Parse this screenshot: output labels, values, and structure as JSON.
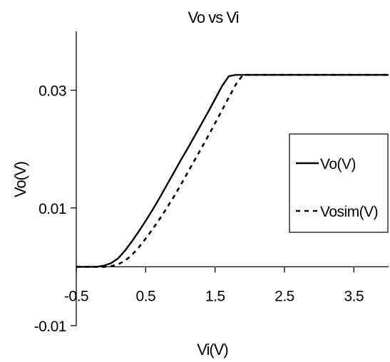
{
  "chart_data": {
    "type": "line",
    "title": "Vo vs Vi",
    "xlabel": "Vi(V)",
    "ylabel": "Vo(V)",
    "xlim": [
      -0.5,
      4.0
    ],
    "ylim": [
      -0.01,
      0.04
    ],
    "x_ticks": [
      -0.5,
      0.5,
      1.5,
      2.5,
      3.5
    ],
    "x_tick_labels": [
      "-0.5",
      "0.5",
      "1.5",
      "2.5",
      "3.5"
    ],
    "y_ticks": [
      -0.01,
      0.01,
      0.03
    ],
    "y_tick_labels": [
      "-0.01",
      "0.01",
      "0.03"
    ],
    "x_axis_crosses_at": 0.0,
    "y_axis_crosses_at": -0.5,
    "grid": false,
    "legend_position": "right",
    "series": [
      {
        "name": "Vo(V)",
        "line_style": "solid",
        "color": "#000000",
        "x": [
          -0.5,
          -0.2,
          -0.1,
          0.0,
          0.1,
          0.2,
          0.3,
          0.4,
          0.5,
          0.6,
          0.7,
          0.8,
          0.9,
          1.0,
          1.1,
          1.2,
          1.3,
          1.4,
          1.5,
          1.6,
          1.7,
          1.8,
          2.0,
          2.5,
          3.0,
          3.5,
          4.0
        ],
        "y": [
          0.0,
          0.0,
          0.0002,
          0.0006,
          0.0014,
          0.0027,
          0.0043,
          0.006,
          0.0078,
          0.0097,
          0.0117,
          0.0138,
          0.0159,
          0.018,
          0.02,
          0.0221,
          0.0242,
          0.0263,
          0.0285,
          0.0307,
          0.0324,
          0.0326,
          0.0326,
          0.0326,
          0.0326,
          0.0326,
          0.0326
        ]
      },
      {
        "name": "Vosim(V)",
        "line_style": "dashed",
        "color": "#000000",
        "x": [
          -0.5,
          -0.1,
          0.0,
          0.1,
          0.2,
          0.3,
          0.4,
          0.5,
          0.6,
          0.7,
          0.8,
          0.9,
          1.0,
          1.1,
          1.2,
          1.3,
          1.4,
          1.5,
          1.6,
          1.7,
          1.8,
          1.9,
          2.0,
          2.5,
          3.0,
          3.5,
          4.0
        ],
        "y": [
          0.0,
          0.0,
          0.0001,
          0.0004,
          0.001,
          0.002,
          0.0033,
          0.0048,
          0.0064,
          0.0081,
          0.0099,
          0.0118,
          0.0138,
          0.0159,
          0.018,
          0.0201,
          0.0222,
          0.0244,
          0.0266,
          0.0288,
          0.031,
          0.0326,
          0.0326,
          0.0326,
          0.0326,
          0.0326,
          0.0326
        ]
      }
    ]
  }
}
